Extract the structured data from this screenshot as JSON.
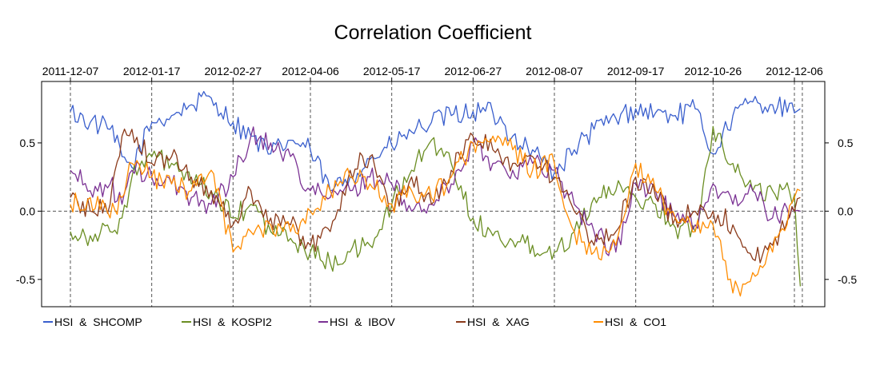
{
  "chart_data": {
    "type": "line",
    "title": "Correlation Coefficient",
    "xlabel": "",
    "ylabel": "",
    "x_ticks": [
      "2011-12-07",
      "2012-01-17",
      "2012-02-27",
      "2012-04-06",
      "2012-05-17",
      "2012-06-27",
      "2012-08-07",
      "2012-09-17",
      "2012-10-26",
      "2012-12-06"
    ],
    "x_range": [
      "2011-12-07",
      "2012-12-10"
    ],
    "y_ticks": [
      -0.5,
      0.0,
      0.5
    ],
    "y_tick_labels": [
      "-0.5",
      "0.0",
      "0.5"
    ],
    "ylim": [
      -0.7,
      0.95
    ],
    "grid": "dashed vertical lines at x ticks, dashed horizontal line at 0",
    "legend_position": "bottom",
    "series": [
      {
        "name": "HSI  &  SHCOMP",
        "color": "#3a5fcd",
        "x": [
          "2011-12-07",
          "2011-12-17",
          "2011-12-27",
          "2012-01-02",
          "2012-01-07",
          "2012-01-17",
          "2012-01-27",
          "2012-02-06",
          "2012-02-16",
          "2012-02-27",
          "2012-03-07",
          "2012-03-17",
          "2012-03-27",
          "2012-04-06",
          "2012-04-16",
          "2012-04-26",
          "2012-05-06",
          "2012-05-17",
          "2012-05-27",
          "2012-06-06",
          "2012-06-16",
          "2012-06-27",
          "2012-07-07",
          "2012-07-17",
          "2012-07-27",
          "2012-08-07",
          "2012-08-17",
          "2012-08-27",
          "2012-09-07",
          "2012-09-17",
          "2012-09-27",
          "2012-10-07",
          "2012-10-17",
          "2012-10-26",
          "2012-11-05",
          "2012-11-15",
          "2012-11-25",
          "2012-12-06",
          "2012-12-09"
        ],
        "values": [
          0.73,
          0.65,
          0.6,
          0.4,
          0.32,
          0.65,
          0.7,
          0.78,
          0.83,
          0.65,
          0.55,
          0.42,
          0.52,
          0.45,
          0.15,
          0.25,
          0.38,
          0.48,
          0.58,
          0.65,
          0.7,
          0.73,
          0.72,
          0.55,
          0.45,
          0.28,
          0.45,
          0.6,
          0.68,
          0.75,
          0.72,
          0.7,
          0.75,
          0.42,
          0.7,
          0.8,
          0.78,
          0.72,
          0.75
        ]
      },
      {
        "name": "HSI  &  KOSPI2",
        "color": "#6b8e23",
        "x": [
          "2011-12-07",
          "2011-12-17",
          "2011-12-27",
          "2012-01-02",
          "2012-01-07",
          "2012-01-17",
          "2012-01-27",
          "2012-02-06",
          "2012-02-16",
          "2012-02-27",
          "2012-03-07",
          "2012-03-17",
          "2012-03-27",
          "2012-04-06",
          "2012-04-16",
          "2012-04-26",
          "2012-05-06",
          "2012-05-17",
          "2012-05-27",
          "2012-06-06",
          "2012-06-16",
          "2012-06-27",
          "2012-07-07",
          "2012-07-17",
          "2012-07-27",
          "2012-08-07",
          "2012-08-17",
          "2012-08-27",
          "2012-09-07",
          "2012-09-17",
          "2012-09-27",
          "2012-10-07",
          "2012-10-17",
          "2012-10-26",
          "2012-11-05",
          "2012-11-15",
          "2012-11-25",
          "2012-12-06",
          "2012-12-09"
        ],
        "values": [
          -0.15,
          -0.18,
          -0.15,
          -0.05,
          0.25,
          0.4,
          0.35,
          0.2,
          0.15,
          -0.05,
          0.05,
          -0.15,
          -0.2,
          -0.3,
          -0.38,
          -0.3,
          -0.25,
          0.05,
          0.3,
          0.52,
          0.35,
          -0.05,
          -0.18,
          -0.22,
          -0.25,
          -0.3,
          -0.15,
          0.1,
          0.15,
          0.1,
          0.05,
          -0.12,
          -0.15,
          0.62,
          0.35,
          0.15,
          0.15,
          0.12,
          -0.55
        ]
      },
      {
        "name": "HSI  &  IBOV",
        "color": "#7b3294",
        "x": [
          "2011-12-07",
          "2011-12-17",
          "2011-12-27",
          "2012-01-02",
          "2012-01-07",
          "2012-01-17",
          "2012-01-27",
          "2012-02-06",
          "2012-02-16",
          "2012-02-27",
          "2012-03-07",
          "2012-03-17",
          "2012-03-27",
          "2012-04-06",
          "2012-04-16",
          "2012-04-26",
          "2012-05-06",
          "2012-05-17",
          "2012-05-27",
          "2012-06-06",
          "2012-06-16",
          "2012-06-27",
          "2012-07-07",
          "2012-07-17",
          "2012-07-27",
          "2012-08-07",
          "2012-08-17",
          "2012-08-27",
          "2012-09-07",
          "2012-09-17",
          "2012-09-27",
          "2012-10-07",
          "2012-10-17",
          "2012-10-26",
          "2012-11-05",
          "2012-11-15",
          "2012-11-25",
          "2012-12-06",
          "2012-12-09"
        ],
        "values": [
          0.3,
          0.15,
          0.2,
          0.05,
          0.3,
          0.25,
          0.2,
          0.1,
          0.05,
          0.25,
          0.55,
          0.5,
          0.4,
          0.15,
          0.1,
          0.15,
          0.25,
          0.2,
          0.0,
          0.05,
          0.2,
          0.5,
          0.35,
          0.3,
          0.35,
          0.3,
          0.05,
          -0.15,
          -0.3,
          0.2,
          0.15,
          -0.05,
          -0.1,
          0.2,
          0.05,
          0.15,
          -0.05,
          0.0,
          0.0
        ]
      },
      {
        "name": "HSI  &  XAG",
        "color": "#8b3a1a",
        "x": [
          "2011-12-07",
          "2011-12-17",
          "2011-12-27",
          "2012-01-02",
          "2012-01-07",
          "2012-01-17",
          "2012-01-27",
          "2012-02-06",
          "2012-02-16",
          "2012-02-27",
          "2012-03-07",
          "2012-03-17",
          "2012-03-27",
          "2012-04-06",
          "2012-04-16",
          "2012-04-26",
          "2012-05-06",
          "2012-05-17",
          "2012-05-27",
          "2012-06-06",
          "2012-06-16",
          "2012-06-27",
          "2012-07-07",
          "2012-07-17",
          "2012-07-27",
          "2012-08-07",
          "2012-08-17",
          "2012-08-27",
          "2012-09-07",
          "2012-09-17",
          "2012-09-27",
          "2012-10-07",
          "2012-10-17",
          "2012-10-26",
          "2012-11-05",
          "2012-11-15",
          "2012-11-25",
          "2012-12-06",
          "2012-12-09"
        ],
        "values": [
          0.1,
          0.0,
          0.05,
          0.55,
          0.6,
          0.35,
          0.4,
          0.25,
          0.15,
          -0.1,
          0.15,
          -0.05,
          -0.1,
          -0.25,
          -0.15,
          0.3,
          0.4,
          0.0,
          0.25,
          0.05,
          0.3,
          0.55,
          0.45,
          0.35,
          0.4,
          0.25,
          0.0,
          -0.25,
          -0.15,
          0.25,
          0.1,
          -0.05,
          0.0,
          0.0,
          -0.1,
          -0.35,
          -0.25,
          0.0,
          0.1
        ]
      },
      {
        "name": "HSI  &  CO1",
        "color": "#ff8c00",
        "x": [
          "2011-12-07",
          "2011-12-17",
          "2011-12-27",
          "2012-01-02",
          "2012-01-07",
          "2012-01-17",
          "2012-01-27",
          "2012-02-06",
          "2012-02-16",
          "2012-02-27",
          "2012-03-07",
          "2012-03-17",
          "2012-03-27",
          "2012-04-06",
          "2012-04-16",
          "2012-04-26",
          "2012-05-06",
          "2012-05-17",
          "2012-05-27",
          "2012-06-06",
          "2012-06-16",
          "2012-06-27",
          "2012-07-07",
          "2012-07-17",
          "2012-07-27",
          "2012-08-07",
          "2012-08-17",
          "2012-08-27",
          "2012-09-07",
          "2012-09-17",
          "2012-09-27",
          "2012-10-07",
          "2012-10-17",
          "2012-10-26",
          "2012-11-05",
          "2012-11-15",
          "2012-11-25",
          "2012-12-06",
          "2012-12-09"
        ],
        "values": [
          0.05,
          0.1,
          -0.05,
          0.1,
          0.35,
          0.25,
          0.2,
          0.15,
          0.3,
          -0.3,
          -0.15,
          -0.1,
          -0.15,
          0.0,
          0.15,
          0.25,
          0.2,
          0.05,
          0.15,
          0.1,
          0.25,
          0.5,
          0.55,
          0.45,
          0.3,
          0.35,
          -0.15,
          -0.3,
          -0.25,
          0.35,
          0.15,
          -0.05,
          -0.15,
          -0.1,
          -0.6,
          -0.45,
          -0.3,
          0.1,
          0.15
        ]
      }
    ]
  }
}
